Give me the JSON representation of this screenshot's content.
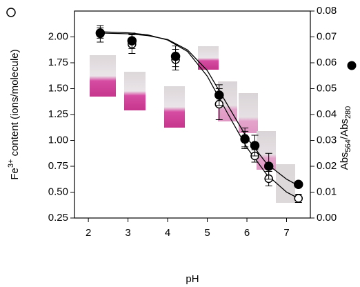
{
  "chart_data": {
    "type": "scatter",
    "xlabel": "pH",
    "ylabel": [
      "Fe",
      "3+",
      " content (ions/molecule)"
    ],
    "y2label": [
      "Abs",
      "564",
      "/Abs",
      "280"
    ],
    "xlim": [
      1.65,
      7.6
    ],
    "xticks": [
      2,
      3,
      4,
      5,
      6,
      7
    ],
    "ylim": [
      0.25,
      2.25
    ],
    "yticks": [
      {
        "value": 0.25,
        "label": "0.25"
      },
      {
        "value": 0.5,
        "label": "0.50"
      },
      0.75,
      {
        "value": 1,
        "label": "1.00"
      },
      1.25,
      {
        "value": 1.5,
        "label": "1.50"
      },
      1.75,
      {
        "value": 2,
        "label": "2.00"
      }
    ],
    "y2lim": [
      0,
      0.08
    ],
    "y2ticks": [
      {
        "value": 0,
        "label": "0.00"
      },
      0.01,
      0.02,
      0.03,
      0.04,
      0.05,
      0.06,
      0.07,
      0.08
    ],
    "series": [
      {
        "marker": "open",
        "color": "#000000",
        "x": [
          2.3,
          3.1,
          4.2,
          5.3,
          5.95,
          6.2,
          6.55,
          7.3
        ],
        "values": [
          2.03,
          1.93,
          1.78,
          1.35,
          1.02,
          0.85,
          0.63,
          0.44
        ],
        "errors": [
          0.08,
          0.09,
          0.1,
          0.15,
          0.1,
          0.06,
          0.07,
          0.04
        ]
      },
      {
        "marker": "filled",
        "color": "#000000",
        "axis": "y2",
        "x": [
          2.3,
          3.1,
          4.2,
          5.3,
          5.95,
          6.2,
          6.55,
          7.3
        ],
        "values": [
          0.0715,
          0.0685,
          0.0625,
          0.0475,
          0.0305,
          0.028,
          0.02,
          0.013
        ],
        "errors": [
          0.002,
          0.003,
          0.004,
          0.004,
          0.003,
          0.004,
          0.005,
          0.001
        ]
      }
    ],
    "fits": [
      {
        "x": [
          2.3,
          3,
          3.5,
          4,
          4.5,
          5,
          5.5,
          6,
          6.5,
          7,
          7.3
        ],
        "values": [
          2.05,
          2.04,
          2.02,
          1.97,
          1.86,
          1.62,
          1.27,
          0.93,
          0.67,
          0.5,
          0.44
        ]
      },
      {
        "axis": "y2",
        "x": [
          2.3,
          3,
          3.5,
          4,
          4.5,
          5,
          5.5,
          6,
          6.5,
          7,
          7.3
        ],
        "values": [
          0.0715,
          0.0712,
          0.0705,
          0.069,
          0.065,
          0.057,
          0.044,
          0.031,
          0.021,
          0.015,
          0.0125
        ]
      }
    ]
  }
}
